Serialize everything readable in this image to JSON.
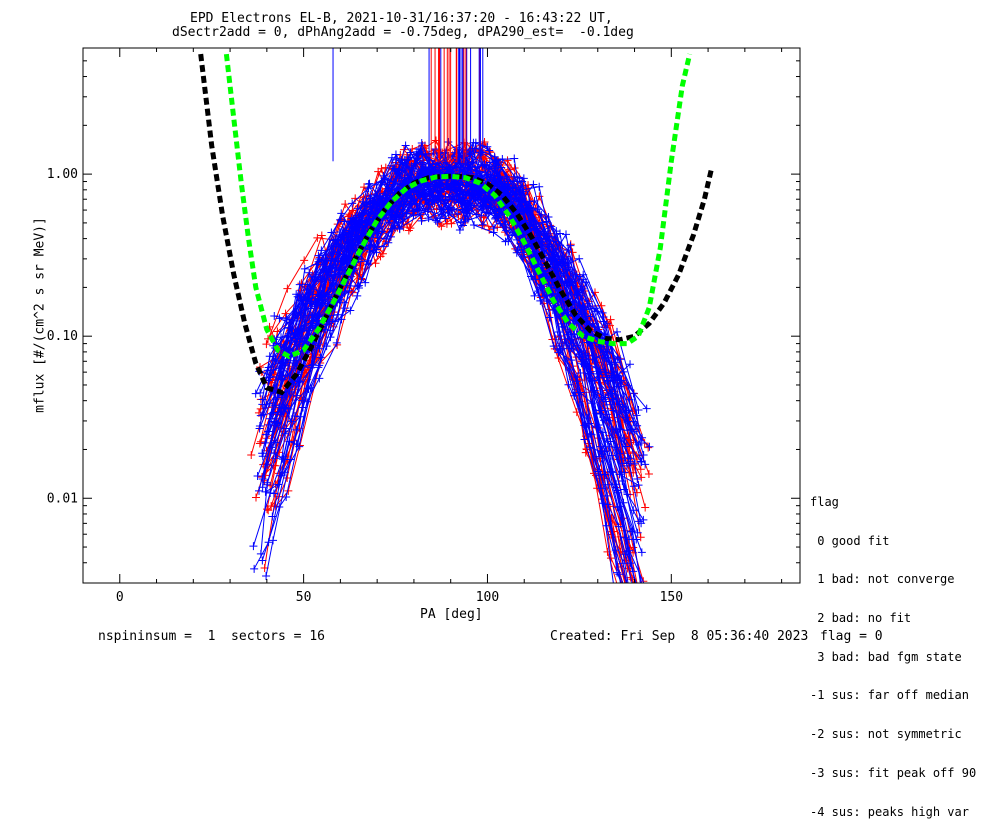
{
  "chart_data": {
    "type": "line",
    "title": "EPD Electrons EL-B, 2021-10-31/16:37:20 - 16:43:22 UT,",
    "subtitle": "dSectr2add = 0, dPhAng2add = -0.75deg, dPA290_est=  -0.1deg",
    "xlabel": "PA [deg]",
    "ylabel": "mflux [#/(cm^2 s sr MeV)]",
    "x_scale": "linear",
    "y_scale": "log",
    "xlim": [
      -10,
      185
    ],
    "ylim": [
      0.003,
      6
    ],
    "x_ticks": [
      {
        "v": 0,
        "label": "0"
      },
      {
        "v": 50,
        "label": "50"
      },
      {
        "v": 100,
        "label": "100"
      },
      {
        "v": 150,
        "label": "150"
      }
    ],
    "y_ticks": [
      {
        "v": 0.01,
        "label": "0.01"
      },
      {
        "v": 0.1,
        "label": "0.10"
      },
      {
        "v": 1,
        "label": "1.00"
      }
    ],
    "colors": {
      "red": "#ff0000",
      "blue": "#0000ff",
      "green": "#00ff00",
      "black": "#000000"
    },
    "fit_curves": [
      {
        "color": "#000000",
        "style": "dashed-thick",
        "x": [
          22,
          25,
          28,
          31,
          34,
          37,
          40,
          44,
          48,
          52,
          56,
          60,
          64,
          68,
          72,
          76,
          80,
          84,
          88,
          92,
          96,
          100,
          104,
          108,
          112,
          116,
          120,
          124,
          128,
          132,
          136,
          140,
          144,
          148,
          152,
          156,
          159,
          161
        ],
        "y": [
          5.5,
          1.5,
          0.55,
          0.24,
          0.12,
          0.068,
          0.048,
          0.045,
          0.058,
          0.085,
          0.13,
          0.2,
          0.3,
          0.44,
          0.6,
          0.76,
          0.88,
          0.95,
          0.97,
          0.97,
          0.95,
          0.87,
          0.74,
          0.57,
          0.41,
          0.28,
          0.19,
          0.135,
          0.108,
          0.097,
          0.095,
          0.1,
          0.12,
          0.16,
          0.24,
          0.42,
          0.7,
          1.1
        ]
      },
      {
        "color": "#00ff00",
        "style": "dashed-thick",
        "x": [
          29,
          31,
          33,
          35,
          37,
          40,
          43,
          46,
          50,
          54,
          58,
          62,
          66,
          70,
          74,
          78,
          82,
          86,
          90,
          94,
          98,
          102,
          106,
          110,
          114,
          118,
          122,
          126,
          130,
          134,
          138,
          141,
          144,
          147,
          150,
          153,
          155
        ],
        "y": [
          5.5,
          2.2,
          0.9,
          0.4,
          0.2,
          0.11,
          0.082,
          0.075,
          0.082,
          0.11,
          0.16,
          0.24,
          0.36,
          0.52,
          0.68,
          0.82,
          0.91,
          0.96,
          0.97,
          0.95,
          0.88,
          0.74,
          0.55,
          0.38,
          0.25,
          0.165,
          0.12,
          0.1,
          0.093,
          0.09,
          0.09,
          0.1,
          0.15,
          0.35,
          1.2,
          3.5,
          5.5
        ]
      }
    ]
  },
  "footer": {
    "left": "nspininsum =  1  sectors = 16",
    "created": "Created: Fri Sep  8 05:36:40 2023",
    "flag": "flag = 0"
  },
  "legend": {
    "title": "flag",
    "items": [
      " 0 good fit",
      " 1 bad: not converge",
      " 2 bad: no fit",
      " 3 bad: bad fgm state",
      "-1 sus: far off median",
      "-2 sus: not symmetric",
      "-3 sus: fit peak off 90",
      "-4 sus: peaks high var"
    ]
  }
}
